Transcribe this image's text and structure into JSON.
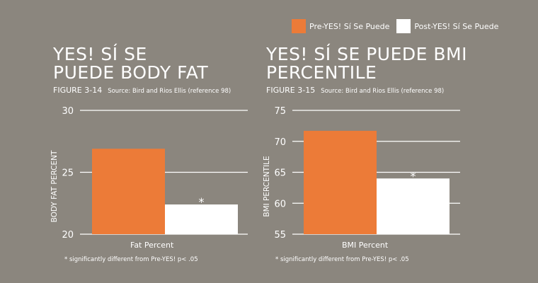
{
  "legend": [
    {
      "label": "Pre-YES! Sí Se Puede",
      "color": "#ec7b38"
    },
    {
      "label": "Post-YES! Sí Se Puede",
      "color": "#ffffff"
    }
  ],
  "chart_data": [
    {
      "type": "bar",
      "title": "YES! SÍ SE PUEDE BODY FAT",
      "figure": "FIGURE 3-14",
      "source": "Source: Bird and Rios Ellis (reference 98)",
      "ylabel": "BODY FAT PERCENT",
      "xlabel": "Fat Percent",
      "ylim": [
        20,
        30
      ],
      "yticks": [
        "20",
        "25",
        "30"
      ],
      "grid": true,
      "series": [
        {
          "name": "Pre-YES! Sí Se Puede",
          "values": [
            26.9
          ]
        },
        {
          "name": "Post-YES! Sí Se Puede",
          "values": [
            22.4
          ]
        }
      ],
      "annotation": "*",
      "note": "* significantly different from Pre-YES! p< .05"
    },
    {
      "type": "bar",
      "title": "YES! SÍ SE PUEDE BMI PERCENTILE",
      "figure": "FIGURE 3-15",
      "source": "Source: Bird and Rios Ellis (reference 98)",
      "ylabel": "BMI PERCENTILE",
      "xlabel": "BMI Percent",
      "ylim": [
        55,
        75
      ],
      "yticks": [
        "55",
        "60",
        "65",
        "70",
        "75"
      ],
      "grid": true,
      "series": [
        {
          "name": "Pre-YES! Sí Se Puede",
          "values": [
            71.7
          ]
        },
        {
          "name": "Post-YES! Sí Se Puede",
          "values": [
            64.0
          ]
        }
      ],
      "annotation": "*",
      "note": "* significantly different from Pre-YES! p< .05"
    }
  ]
}
